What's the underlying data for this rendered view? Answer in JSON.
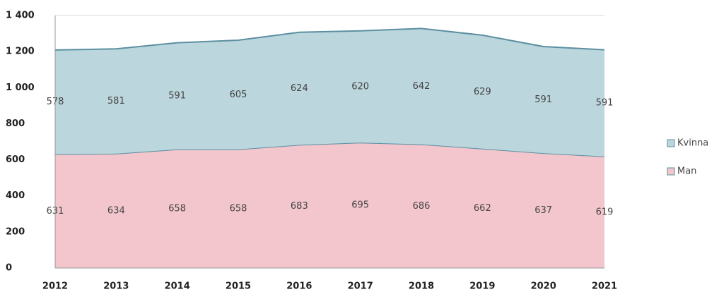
{
  "chart_data": {
    "type": "stacked-area",
    "categories": [
      "2012",
      "2013",
      "2014",
      "2015",
      "2016",
      "2017",
      "2018",
      "2019",
      "2020",
      "2021"
    ],
    "series": [
      {
        "name": "Man",
        "color": "#f2c6cc",
        "line": "#5b8fa0",
        "values": [
          631,
          634,
          658,
          658,
          683,
          695,
          686,
          662,
          637,
          619
        ]
      },
      {
        "name": "Kvinna",
        "color": "#bcd6de",
        "line": "#5b8fa0",
        "values": [
          578,
          581,
          591,
          605,
          624,
          620,
          642,
          629,
          591,
          591
        ]
      }
    ],
    "ylim": [
      0,
      1400
    ],
    "yticks": [
      0,
      200,
      400,
      600,
      800,
      {
        "value": 1000,
        "label": "1 000"
      },
      {
        "value": 1200,
        "label": "1 200"
      },
      {
        "value": 1400,
        "label": "1 400"
      }
    ],
    "grid": true,
    "legend": "right"
  }
}
